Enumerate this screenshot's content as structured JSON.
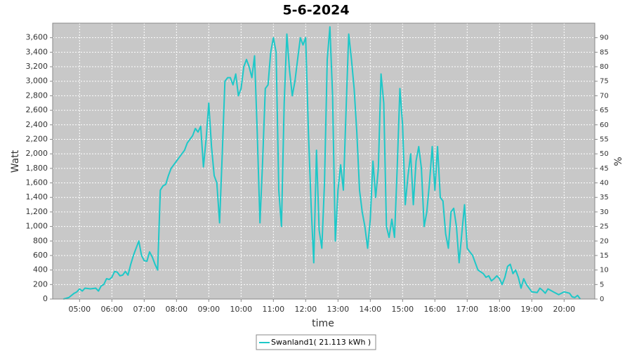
{
  "chart_data": {
    "type": "line",
    "title": "5-6-2024",
    "x_label": "time",
    "y_label": "Watt",
    "y2_label": "%",
    "grid": true,
    "legend": "bottom",
    "xlim": [
      "04:10",
      "20:57"
    ],
    "xticks": [
      "05:00",
      "06:00",
      "07:00",
      "08:00",
      "09:00",
      "10:00",
      "11:00",
      "12:00",
      "13:00",
      "14:00",
      "15:00",
      "16:00",
      "17:00",
      "18:00",
      "19:00",
      "20:00"
    ],
    "ylim": [
      0,
      3800
    ],
    "yticks": [
      0,
      200,
      400,
      600,
      800,
      {
        "value": 1000,
        "label": "1,000"
      },
      {
        "value": 1200,
        "label": "1,200"
      },
      {
        "value": 1400,
        "label": "1,400"
      },
      {
        "value": 1600,
        "label": "1,600"
      },
      {
        "value": 1800,
        "label": "1,800"
      },
      {
        "value": 2000,
        "label": "2,000"
      },
      {
        "value": 2200,
        "label": "2,200"
      },
      {
        "value": 2400,
        "label": "2,400"
      },
      {
        "value": 2600,
        "label": "2,600"
      },
      {
        "value": 2800,
        "label": "2,800"
      },
      {
        "value": 3000,
        "label": "3,000"
      },
      {
        "value": 3200,
        "label": "3,200"
      },
      {
        "value": 3400,
        "label": "3,400"
      },
      {
        "value": 3600,
        "label": "3,600"
      }
    ],
    "y2lim": [
      0,
      95
    ],
    "y2ticks": [
      0,
      5,
      10,
      15,
      20,
      25,
      30,
      35,
      40,
      45,
      50,
      55,
      60,
      65,
      70,
      75,
      80,
      85,
      90
    ],
    "x": [
      "04:30",
      "04:40",
      "04:50",
      "04:55",
      "05:00",
      "05:05",
      "05:10",
      "05:20",
      "05:30",
      "05:35",
      "05:40",
      "05:45",
      "05:50",
      "05:55",
      "06:00",
      "06:05",
      "06:10",
      "06:15",
      "06:20",
      "06:25",
      "06:30",
      "06:35",
      "06:40",
      "06:45",
      "06:50",
      "06:55",
      "07:00",
      "07:05",
      "07:10",
      "07:15",
      "07:20",
      "07:25",
      "07:30",
      "07:35",
      "07:40",
      "07:45",
      "07:50",
      "07:55",
      "08:00",
      "08:10",
      "08:15",
      "08:20",
      "08:30",
      "08:35",
      "08:40",
      "08:45",
      "08:50",
      "08:55",
      "09:00",
      "09:05",
      "09:10",
      "09:15",
      "09:20",
      "09:25",
      "09:30",
      "09:35",
      "09:40",
      "09:45",
      "09:50",
      "09:55",
      "10:00",
      "10:05",
      "10:10",
      "10:15",
      "10:20",
      "10:25",
      "10:30",
      "10:35",
      "10:40",
      "10:45",
      "10:50",
      "10:55",
      "11:00",
      "11:05",
      "11:10",
      "11:15",
      "11:20",
      "11:25",
      "11:30",
      "11:35",
      "11:40",
      "11:45",
      "11:50",
      "11:55",
      "12:00",
      "12:05",
      "12:10",
      "12:15",
      "12:20",
      "12:25",
      "12:30",
      "12:35",
      "12:40",
      "12:45",
      "12:50",
      "12:55",
      "13:00",
      "13:05",
      "13:10",
      "13:15",
      "13:20",
      "13:25",
      "13:30",
      "13:35",
      "13:40",
      "13:45",
      "13:50",
      "13:55",
      "14:00",
      "14:05",
      "14:10",
      "14:15",
      "14:20",
      "14:25",
      "14:30",
      "14:35",
      "14:40",
      "14:45",
      "14:50",
      "14:55",
      "15:00",
      "15:05",
      "15:10",
      "15:15",
      "15:20",
      "15:25",
      "15:30",
      "15:35",
      "15:40",
      "15:45",
      "15:50",
      "15:55",
      "16:00",
      "16:05",
      "16:10",
      "16:15",
      "16:20",
      "16:25",
      "16:30",
      "16:35",
      "16:40",
      "16:45",
      "16:50",
      "16:55",
      "17:00",
      "17:05",
      "17:10",
      "17:15",
      "17:20",
      "17:30",
      "17:35",
      "17:40",
      "17:45",
      "17:50",
      "17:55",
      "18:00",
      "18:05",
      "18:10",
      "18:15",
      "18:20",
      "18:25",
      "18:30",
      "18:35",
      "18:40",
      "18:45",
      "18:50",
      "19:00",
      "19:10",
      "19:15",
      "19:20",
      "19:25",
      "19:30",
      "19:40",
      "19:50",
      "20:00",
      "20:10",
      "20:15",
      "20:20",
      "20:25",
      "20:30"
    ],
    "series": [
      {
        "name": "Swanland1( 21.113 kWh )",
        "color": "#1ec8c8",
        "values": [
          0,
          20,
          80,
          100,
          140,
          110,
          150,
          140,
          150,
          110,
          180,
          200,
          280,
          270,
          300,
          380,
          370,
          320,
          330,
          380,
          330,
          480,
          600,
          700,
          800,
          600,
          530,
          520,
          650,
          580,
          480,
          400,
          1500,
          1560,
          1580,
          1700,
          1800,
          1850,
          1900,
          2000,
          2050,
          2150,
          2250,
          2350,
          2300,
          2380,
          1820,
          2200,
          2700,
          2100,
          1700,
          1600,
          1050,
          2000,
          3000,
          3050,
          3050,
          2950,
          3100,
          2800,
          2900,
          3200,
          3300,
          3200,
          3050,
          3350,
          2300,
          1050,
          1900,
          2900,
          2950,
          3400,
          3600,
          3400,
          1500,
          1000,
          2700,
          3650,
          3150,
          2800,
          3000,
          3300,
          3600,
          3500,
          3600,
          2300,
          1300,
          500,
          2050,
          950,
          700,
          1600,
          3300,
          3750,
          2800,
          800,
          1500,
          1850,
          1500,
          2600,
          3650,
          3300,
          2900,
          2300,
          1500,
          1200,
          1000,
          700,
          1100,
          1900,
          1400,
          1800,
          3100,
          2700,
          1000,
          850,
          1100,
          850,
          1800,
          2900,
          2400,
          1300,
          1700,
          2000,
          1300,
          1900,
          2100,
          1800,
          1000,
          1200,
          1600,
          2100,
          1500,
          2100,
          1400,
          1350,
          900,
          700,
          1200,
          1250,
          1000,
          500,
          900,
          1300,
          700,
          650,
          600,
          500,
          400,
          350,
          300,
          320,
          250,
          280,
          320,
          280,
          200,
          300,
          450,
          480,
          350,
          400,
          300,
          150,
          280,
          200,
          100,
          90,
          150,
          120,
          80,
          140,
          100,
          60,
          100,
          80,
          30,
          20,
          50,
          0
        ]
      }
    ]
  }
}
